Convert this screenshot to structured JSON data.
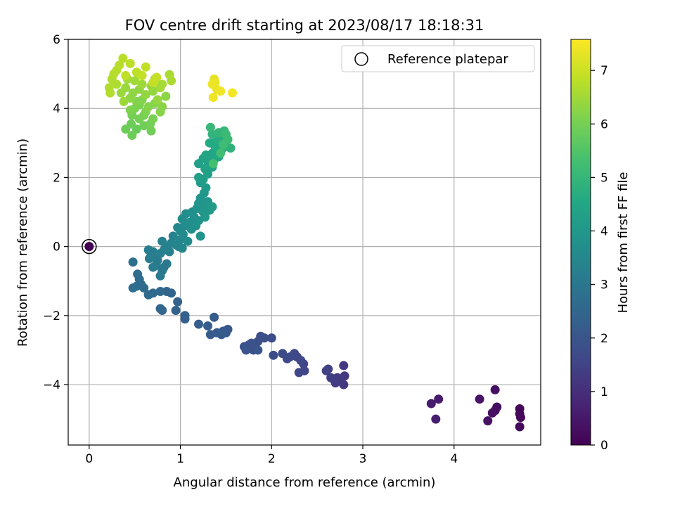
{
  "chart_data": {
    "type": "scatter",
    "title": "FOV centre drift starting at 2023/08/17 18:18:31",
    "xlabel": "Angular distance from reference (arcmin)",
    "ylabel": "Rotation from reference (arcmin)",
    "xlim": [
      -0.23,
      4.95
    ],
    "ylim": [
      -5.75,
      6.0
    ],
    "xticks": [
      0,
      1,
      2,
      3,
      4
    ],
    "yticks": [
      -4,
      -2,
      0,
      2,
      4,
      6
    ],
    "xtick_labels": [
      "0",
      "1",
      "2",
      "3",
      "4"
    ],
    "ytick_labels": [
      "−4",
      "−2",
      "0",
      "2",
      "4",
      "6"
    ],
    "grid": true,
    "colormap": "viridis",
    "colorbar": {
      "label": "Hours from first FF file",
      "range": [
        0,
        7.58
      ],
      "ticks": [
        0,
        1,
        2,
        3,
        4,
        5,
        6,
        7
      ],
      "tick_labels": [
        "0",
        "1",
        "2",
        "3",
        "4",
        "5",
        "6",
        "7"
      ]
    },
    "legend": {
      "placement": "top-right",
      "entries": [
        {
          "label": "Reference platepar",
          "marker": "open-circle"
        }
      ]
    },
    "reference_point": {
      "x": 0,
      "y": 0,
      "t": 0
    },
    "points": [
      {
        "x": 4.72,
        "y": -4.7,
        "t": 0.1
      },
      {
        "x": 4.72,
        "y": -4.85,
        "t": 0.12
      },
      {
        "x": 4.73,
        "y": -4.95,
        "t": 0.15
      },
      {
        "x": 4.72,
        "y": -5.22,
        "t": 0.18
      },
      {
        "x": 4.47,
        "y": -4.65,
        "t": 0.25
      },
      {
        "x": 4.45,
        "y": -4.75,
        "t": 0.28
      },
      {
        "x": 4.42,
        "y": -4.82,
        "t": 0.3
      },
      {
        "x": 4.45,
        "y": -4.15,
        "t": 0.33
      },
      {
        "x": 4.37,
        "y": -5.05,
        "t": 0.36
      },
      {
        "x": 4.28,
        "y": -4.42,
        "t": 0.4
      },
      {
        "x": 3.83,
        "y": -4.42,
        "t": 0.55
      },
      {
        "x": 3.75,
        "y": -4.55,
        "t": 0.58
      },
      {
        "x": 3.8,
        "y": -5.0,
        "t": 0.62
      },
      {
        "x": 2.8,
        "y": -3.75,
        "t": 1.2
      },
      {
        "x": 2.79,
        "y": -3.45,
        "t": 1.22
      },
      {
        "x": 2.79,
        "y": -4.0,
        "t": 1.25
      },
      {
        "x": 2.75,
        "y": -3.9,
        "t": 1.28
      },
      {
        "x": 2.72,
        "y": -3.8,
        "t": 1.3
      },
      {
        "x": 2.7,
        "y": -3.95,
        "t": 1.32
      },
      {
        "x": 2.68,
        "y": -3.85,
        "t": 1.35
      },
      {
        "x": 2.65,
        "y": -3.8,
        "t": 1.38
      },
      {
        "x": 2.62,
        "y": -3.55,
        "t": 1.4
      },
      {
        "x": 2.6,
        "y": -3.6,
        "t": 1.42
      },
      {
        "x": 2.35,
        "y": -3.4,
        "t": 1.55
      },
      {
        "x": 2.36,
        "y": -3.6,
        "t": 1.57
      },
      {
        "x": 2.3,
        "y": -3.65,
        "t": 1.6
      },
      {
        "x": 2.32,
        "y": -3.3,
        "t": 1.62
      },
      {
        "x": 2.28,
        "y": -3.2,
        "t": 1.64
      },
      {
        "x": 2.25,
        "y": -3.1,
        "t": 1.66
      },
      {
        "x": 2.2,
        "y": -3.2,
        "t": 1.68
      },
      {
        "x": 2.17,
        "y": -3.25,
        "t": 1.7
      },
      {
        "x": 2.12,
        "y": -3.1,
        "t": 1.72
      },
      {
        "x": 2.02,
        "y": -3.15,
        "t": 1.75
      },
      {
        "x": 2.0,
        "y": -2.65,
        "t": 1.78
      },
      {
        "x": 1.92,
        "y": -2.65,
        "t": 1.8
      },
      {
        "x": 1.88,
        "y": -2.6,
        "t": 1.82
      },
      {
        "x": 1.85,
        "y": -2.75,
        "t": 1.84
      },
      {
        "x": 1.82,
        "y": -2.9,
        "t": 1.86
      },
      {
        "x": 1.8,
        "y": -3.0,
        "t": 1.88
      },
      {
        "x": 1.78,
        "y": -2.8,
        "t": 1.9
      },
      {
        "x": 1.75,
        "y": -2.85,
        "t": 1.92
      },
      {
        "x": 1.72,
        "y": -3.0,
        "t": 1.94
      },
      {
        "x": 1.7,
        "y": -2.9,
        "t": 1.96
      },
      {
        "x": 1.85,
        "y": -3.0,
        "t": 1.98
      },
      {
        "x": 1.52,
        "y": -2.4,
        "t": 2.05
      },
      {
        "x": 1.5,
        "y": -2.5,
        "t": 2.08
      },
      {
        "x": 1.47,
        "y": -2.45,
        "t": 2.1
      },
      {
        "x": 1.45,
        "y": -2.55,
        "t": 2.12
      },
      {
        "x": 1.4,
        "y": -2.5,
        "t": 2.15
      },
      {
        "x": 1.37,
        "y": -2.05,
        "t": 2.18
      },
      {
        "x": 1.33,
        "y": -2.55,
        "t": 2.2
      },
      {
        "x": 1.3,
        "y": -2.3,
        "t": 2.22
      },
      {
        "x": 1.2,
        "y": -2.25,
        "t": 2.25
      },
      {
        "x": 1.05,
        "y": -2.1,
        "t": 2.3
      },
      {
        "x": 1.05,
        "y": -2.0,
        "t": 2.32
      },
      {
        "x": 0.95,
        "y": -1.85,
        "t": 2.38
      },
      {
        "x": 0.97,
        "y": -1.6,
        "t": 2.4
      },
      {
        "x": 0.9,
        "y": -1.35,
        "t": 2.45
      },
      {
        "x": 0.85,
        "y": -1.3,
        "t": 2.48
      },
      {
        "x": 0.8,
        "y": -1.85,
        "t": 2.5
      },
      {
        "x": 0.78,
        "y": -1.8,
        "t": 2.52
      },
      {
        "x": 0.78,
        "y": -1.3,
        "t": 2.55
      },
      {
        "x": 0.7,
        "y": -1.35,
        "t": 2.58
      },
      {
        "x": 0.65,
        "y": -1.4,
        "t": 2.6
      },
      {
        "x": 0.6,
        "y": -1.2,
        "t": 2.62
      },
      {
        "x": 0.57,
        "y": -1.1,
        "t": 2.64
      },
      {
        "x": 0.55,
        "y": -0.95,
        "t": 2.66
      },
      {
        "x": 0.53,
        "y": -0.8,
        "t": 2.68
      },
      {
        "x": 0.52,
        "y": -1.15,
        "t": 2.7
      },
      {
        "x": 0.48,
        "y": -1.2,
        "t": 2.72
      },
      {
        "x": 0.48,
        "y": -0.45,
        "t": 2.75
      },
      {
        "x": 0.85,
        "y": -0.5,
        "t": 3.0
      },
      {
        "x": 0.82,
        "y": -0.6,
        "t": 3.02
      },
      {
        "x": 0.8,
        "y": -0.7,
        "t": 3.04
      },
      {
        "x": 0.78,
        "y": -0.85,
        "t": 3.06
      },
      {
        "x": 0.75,
        "y": -0.4,
        "t": 3.08
      },
      {
        "x": 0.73,
        "y": -0.55,
        "t": 3.1
      },
      {
        "x": 0.72,
        "y": -0.3,
        "t": 3.12
      },
      {
        "x": 0.7,
        "y": -0.6,
        "t": 3.14
      },
      {
        "x": 0.68,
        "y": -0.2,
        "t": 3.16
      },
      {
        "x": 0.66,
        "y": -0.35,
        "t": 3.18
      },
      {
        "x": 0.65,
        "y": -0.1,
        "t": 3.2
      },
      {
        "x": 0.7,
        "y": -0.15,
        "t": 3.22
      },
      {
        "x": 0.78,
        "y": -0.2,
        "t": 3.24
      },
      {
        "x": 0.82,
        "y": -0.1,
        "t": 3.26
      },
      {
        "x": 0.8,
        "y": 0.15,
        "t": 3.28
      },
      {
        "x": 0.86,
        "y": 0.0,
        "t": 3.3
      },
      {
        "x": 0.88,
        "y": -0.15,
        "t": 3.32
      },
      {
        "x": 0.9,
        "y": 0.1,
        "t": 3.35
      },
      {
        "x": 0.92,
        "y": 0.3,
        "t": 3.38
      },
      {
        "x": 0.95,
        "y": 0.05,
        "t": 3.4
      },
      {
        "x": 0.98,
        "y": 0.0,
        "t": 3.42
      },
      {
        "x": 1.0,
        "y": 0.2,
        "t": 3.45
      },
      {
        "x": 1.02,
        "y": -0.05,
        "t": 3.48
      },
      {
        "x": 0.97,
        "y": 0.55,
        "t": 3.5
      },
      {
        "x": 1.0,
        "y": 0.45,
        "t": 3.55
      },
      {
        "x": 1.03,
        "y": 0.35,
        "t": 3.58
      },
      {
        "x": 1.05,
        "y": 0.6,
        "t": 3.6
      },
      {
        "x": 1.08,
        "y": 0.15,
        "t": 3.62
      },
      {
        "x": 1.02,
        "y": 0.8,
        "t": 3.65
      },
      {
        "x": 1.06,
        "y": 0.95,
        "t": 3.68
      },
      {
        "x": 1.1,
        "y": 0.7,
        "t": 3.7
      },
      {
        "x": 1.12,
        "y": 0.5,
        "t": 3.72
      },
      {
        "x": 1.15,
        "y": 0.85,
        "t": 3.75
      },
      {
        "x": 1.13,
        "y": 1.0,
        "t": 3.78
      },
      {
        "x": 1.17,
        "y": 0.6,
        "t": 3.8
      },
      {
        "x": 1.2,
        "y": 0.75,
        "t": 3.82
      },
      {
        "x": 1.22,
        "y": 0.3,
        "t": 3.84
      },
      {
        "x": 1.18,
        "y": 1.1,
        "t": 3.86
      },
      {
        "x": 1.2,
        "y": 1.25,
        "t": 3.88
      },
      {
        "x": 1.22,
        "y": 1.4,
        "t": 3.9
      },
      {
        "x": 1.25,
        "y": 1.2,
        "t": 3.92
      },
      {
        "x": 1.28,
        "y": 1.1,
        "t": 3.94
      },
      {
        "x": 1.3,
        "y": 1.3,
        "t": 3.96
      },
      {
        "x": 1.26,
        "y": 1.55,
        "t": 3.98
      },
      {
        "x": 1.25,
        "y": 1.0,
        "t": 4.0
      },
      {
        "x": 1.27,
        "y": 0.85,
        "t": 4.02
      },
      {
        "x": 1.32,
        "y": 1.05,
        "t": 4.05
      },
      {
        "x": 1.35,
        "y": 1.15,
        "t": 4.08
      },
      {
        "x": 1.28,
        "y": 1.7,
        "t": 4.1
      },
      {
        "x": 1.22,
        "y": 1.85,
        "t": 4.15
      },
      {
        "x": 1.2,
        "y": 2.0,
        "t": 4.2
      },
      {
        "x": 1.25,
        "y": 1.95,
        "t": 4.22
      },
      {
        "x": 1.3,
        "y": 2.1,
        "t": 4.25
      },
      {
        "x": 1.27,
        "y": 2.25,
        "t": 4.28
      },
      {
        "x": 1.2,
        "y": 2.4,
        "t": 4.3
      },
      {
        "x": 1.25,
        "y": 2.55,
        "t": 4.32
      },
      {
        "x": 1.3,
        "y": 2.35,
        "t": 4.35
      },
      {
        "x": 1.33,
        "y": 2.5,
        "t": 4.38
      },
      {
        "x": 1.35,
        "y": 2.3,
        "t": 4.4
      },
      {
        "x": 1.28,
        "y": 2.65,
        "t": 4.42
      },
      {
        "x": 1.35,
        "y": 2.7,
        "t": 4.45
      },
      {
        "x": 1.38,
        "y": 2.55,
        "t": 4.48
      },
      {
        "x": 1.4,
        "y": 2.75,
        "t": 4.5
      },
      {
        "x": 1.42,
        "y": 2.6,
        "t": 4.52
      },
      {
        "x": 1.45,
        "y": 2.8,
        "t": 4.55
      },
      {
        "x": 1.38,
        "y": 2.9,
        "t": 4.58
      },
      {
        "x": 1.32,
        "y": 3.0,
        "t": 4.6
      },
      {
        "x": 1.4,
        "y": 3.1,
        "t": 4.65
      },
      {
        "x": 1.45,
        "y": 3.05,
        "t": 4.7
      },
      {
        "x": 1.48,
        "y": 3.2,
        "t": 4.75
      },
      {
        "x": 1.5,
        "y": 2.9,
        "t": 4.8
      },
      {
        "x": 1.55,
        "y": 2.85,
        "t": 4.85
      },
      {
        "x": 1.35,
        "y": 3.25,
        "t": 4.9
      },
      {
        "x": 1.42,
        "y": 3.3,
        "t": 4.95
      },
      {
        "x": 1.48,
        "y": 3.35,
        "t": 5.0
      },
      {
        "x": 1.33,
        "y": 3.45,
        "t": 5.05
      },
      {
        "x": 1.5,
        "y": 3.25,
        "t": 5.1
      },
      {
        "x": 1.52,
        "y": 3.1,
        "t": 5.15
      },
      {
        "x": 1.47,
        "y": 2.95,
        "t": 5.2
      },
      {
        "x": 1.44,
        "y": 2.7,
        "t": 5.25
      },
      {
        "x": 1.36,
        "y": 2.4,
        "t": 5.3
      },
      {
        "x": 0.52,
        "y": 3.4,
        "t": 5.8
      },
      {
        "x": 0.4,
        "y": 3.4,
        "t": 5.85
      },
      {
        "x": 0.47,
        "y": 3.22,
        "t": 5.88
      },
      {
        "x": 0.46,
        "y": 3.55,
        "t": 5.9
      },
      {
        "x": 0.6,
        "y": 3.5,
        "t": 5.92
      },
      {
        "x": 0.68,
        "y": 3.35,
        "t": 5.94
      },
      {
        "x": 0.67,
        "y": 3.55,
        "t": 5.96
      },
      {
        "x": 0.55,
        "y": 3.7,
        "t": 5.98
      },
      {
        "x": 0.47,
        "y": 3.8,
        "t": 6.0
      },
      {
        "x": 0.6,
        "y": 3.8,
        "t": 6.02
      },
      {
        "x": 0.7,
        "y": 3.7,
        "t": 6.04
      },
      {
        "x": 0.5,
        "y": 4.0,
        "t": 6.06
      },
      {
        "x": 0.55,
        "y": 4.1,
        "t": 6.08
      },
      {
        "x": 0.62,
        "y": 3.9,
        "t": 6.1
      },
      {
        "x": 0.45,
        "y": 3.95,
        "t": 6.12
      },
      {
        "x": 0.52,
        "y": 4.2,
        "t": 6.14
      },
      {
        "x": 0.58,
        "y": 4.25,
        "t": 6.16
      },
      {
        "x": 0.65,
        "y": 4.05,
        "t": 6.18
      },
      {
        "x": 0.72,
        "y": 4.15,
        "t": 6.2
      },
      {
        "x": 0.78,
        "y": 3.9,
        "t": 6.22
      },
      {
        "x": 0.8,
        "y": 4.05,
        "t": 6.24
      },
      {
        "x": 0.84,
        "y": 4.35,
        "t": 6.26
      },
      {
        "x": 0.45,
        "y": 4.3,
        "t": 6.28
      },
      {
        "x": 0.48,
        "y": 4.45,
        "t": 6.3
      },
      {
        "x": 0.55,
        "y": 4.55,
        "t": 6.32
      },
      {
        "x": 0.62,
        "y": 4.4,
        "t": 6.34
      },
      {
        "x": 0.7,
        "y": 4.5,
        "t": 6.36
      },
      {
        "x": 0.75,
        "y": 4.25,
        "t": 6.38
      },
      {
        "x": 0.68,
        "y": 4.65,
        "t": 6.4
      },
      {
        "x": 0.4,
        "y": 4.6,
        "t": 6.42
      },
      {
        "x": 0.35,
        "y": 4.45,
        "t": 6.44
      },
      {
        "x": 0.38,
        "y": 4.2,
        "t": 6.46
      },
      {
        "x": 0.58,
        "y": 4.7,
        "t": 6.48
      },
      {
        "x": 0.5,
        "y": 4.8,
        "t": 6.5
      },
      {
        "x": 0.42,
        "y": 4.85,
        "t": 6.52
      },
      {
        "x": 0.78,
        "y": 4.6,
        "t": 6.54
      },
      {
        "x": 0.8,
        "y": 4.7,
        "t": 6.56
      },
      {
        "x": 0.72,
        "y": 4.85,
        "t": 6.58
      },
      {
        "x": 0.88,
        "y": 4.98,
        "t": 6.6
      },
      {
        "x": 0.9,
        "y": 4.8,
        "t": 6.62
      },
      {
        "x": 0.3,
        "y": 4.7,
        "t": 6.64
      },
      {
        "x": 0.25,
        "y": 4.85,
        "t": 6.66
      },
      {
        "x": 0.22,
        "y": 4.6,
        "t": 6.68
      },
      {
        "x": 0.23,
        "y": 4.45,
        "t": 6.7
      },
      {
        "x": 0.27,
        "y": 5.0,
        "t": 6.72
      },
      {
        "x": 0.3,
        "y": 5.1,
        "t": 6.74
      },
      {
        "x": 0.33,
        "y": 5.25,
        "t": 6.76
      },
      {
        "x": 0.37,
        "y": 5.45,
        "t": 6.78
      },
      {
        "x": 0.45,
        "y": 5.3,
        "t": 6.8
      },
      {
        "x": 0.52,
        "y": 5.05,
        "t": 6.82
      },
      {
        "x": 0.4,
        "y": 4.95,
        "t": 6.84
      },
      {
        "x": 0.62,
        "y": 5.2,
        "t": 6.86
      },
      {
        "x": 0.58,
        "y": 4.95,
        "t": 6.88
      },
      {
        "x": 0.7,
        "y": 4.75,
        "t": 6.9
      },
      {
        "x": 0.74,
        "y": 4.9,
        "t": 6.92
      },
      {
        "x": 1.37,
        "y": 4.85,
        "t": 7.3
      },
      {
        "x": 1.38,
        "y": 4.75,
        "t": 7.32
      },
      {
        "x": 1.4,
        "y": 4.55,
        "t": 7.35
      },
      {
        "x": 1.35,
        "y": 4.7,
        "t": 7.38
      },
      {
        "x": 1.44,
        "y": 4.5,
        "t": 7.4
      },
      {
        "x": 1.36,
        "y": 4.32,
        "t": 7.42
      },
      {
        "x": 1.57,
        "y": 4.45,
        "t": 7.45
      }
    ]
  }
}
